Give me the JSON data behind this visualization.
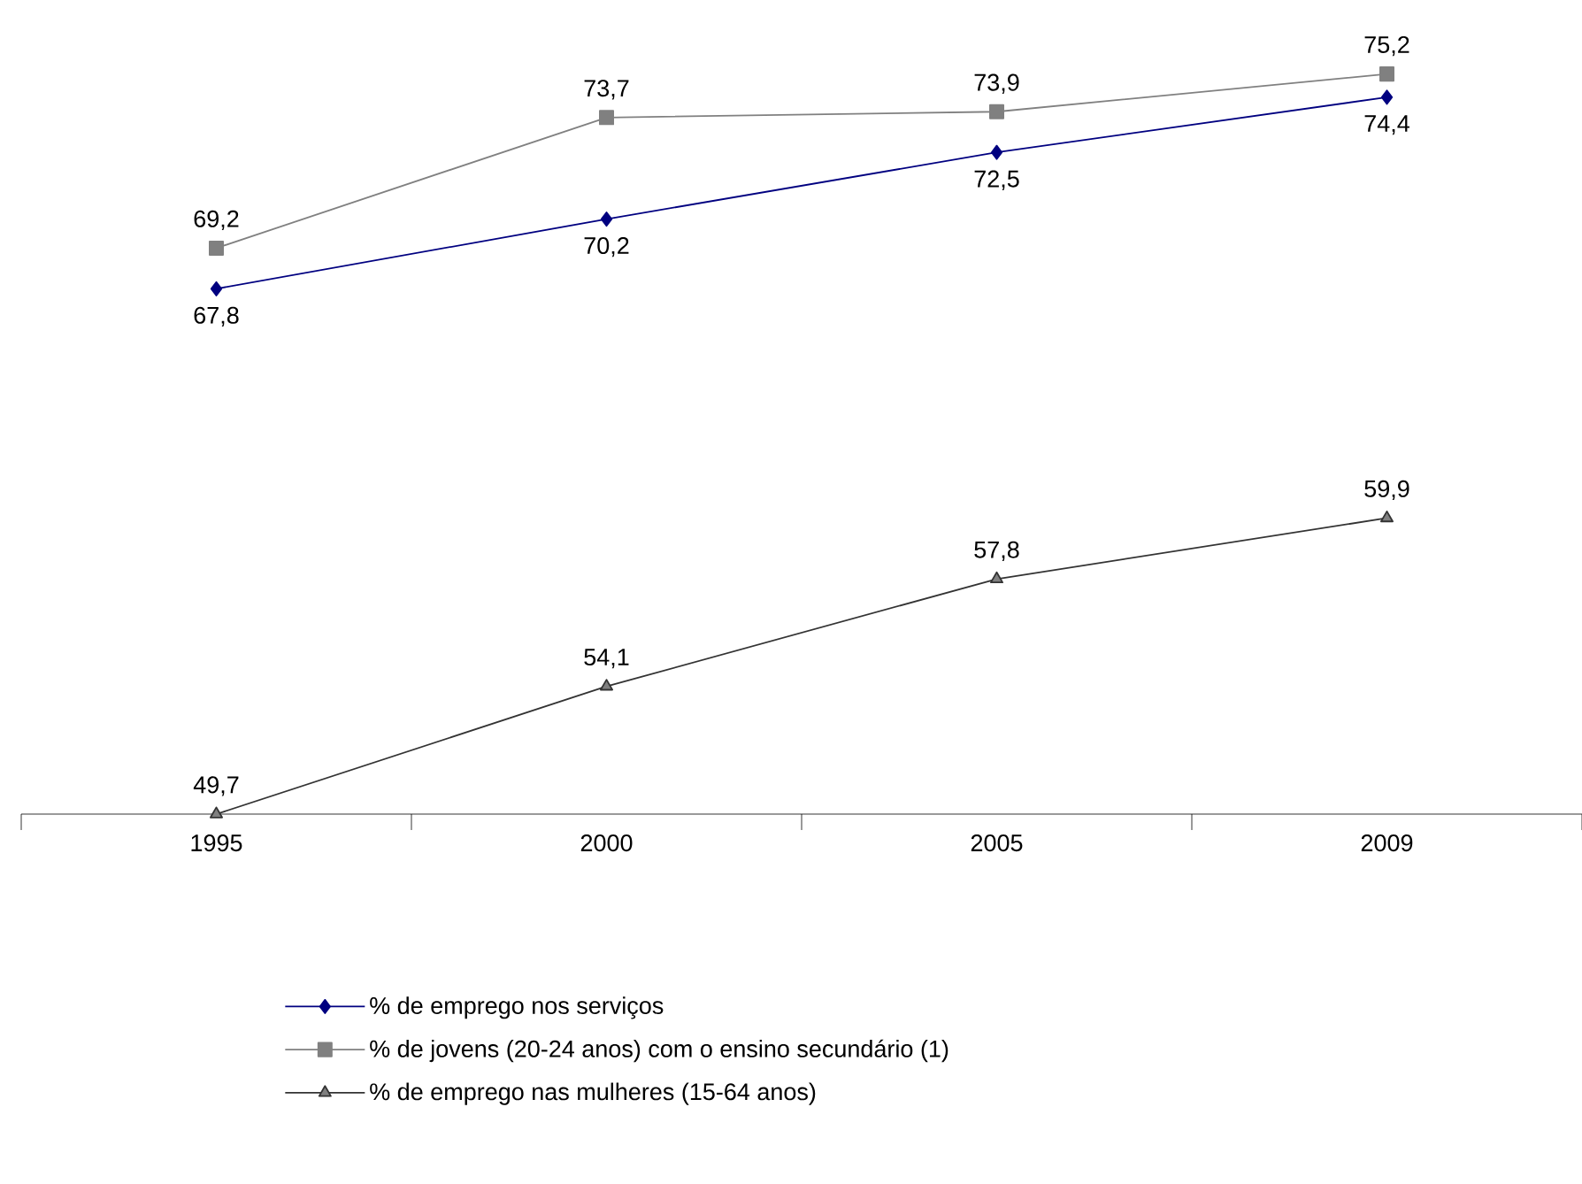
{
  "chart_data": {
    "type": "line",
    "categories": [
      "1995",
      "2000",
      "2005",
      "2009"
    ],
    "series": [
      {
        "name": "% de emprego nos serviços",
        "color": "#000080",
        "marker": "diamond",
        "values": [
          67.8,
          70.2,
          72.5,
          74.4
        ],
        "value_labels": [
          "67,8",
          "70,2",
          "72,5",
          "74,4"
        ]
      },
      {
        "name": "% de jovens (20-24 anos) com o ensino secundário (1)",
        "color": "#808080",
        "marker": "square",
        "values": [
          69.2,
          73.7,
          73.9,
          75.2
        ],
        "value_labels": [
          "69,2",
          "73,7",
          "73,9",
          "75,2"
        ]
      },
      {
        "name": "% de emprego nas mulheres (15-64 anos)",
        "color": "#333333",
        "marker": "triangle",
        "values": [
          49.7,
          54.1,
          57.8,
          59.9
        ],
        "value_labels": [
          "49,7",
          "54,1",
          "57,8",
          "59,9"
        ]
      }
    ],
    "legend": "bottom"
  }
}
